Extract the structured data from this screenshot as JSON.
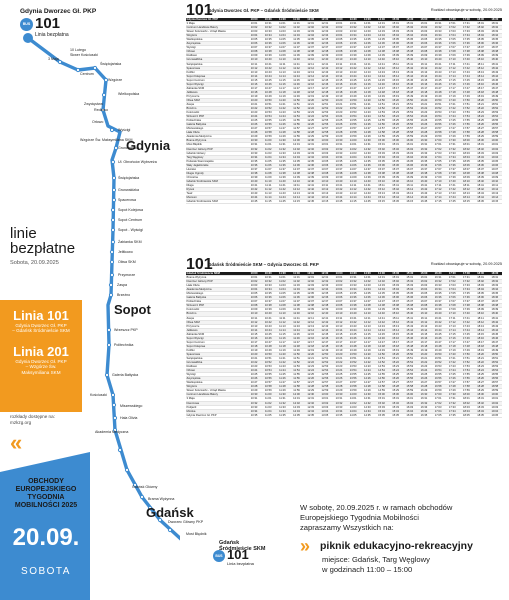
{
  "header": {
    "start_stop": "Gdynia Dworzec Gł. PKP",
    "line_badge": "BUS",
    "line_number": "101",
    "line_free": "Linia bezpłatna"
  },
  "route_left": {
    "stops": [
      "10 Lutego",
      "Skwer Kościuszki",
      "3 Maja",
      "Centrum",
      "Świętojańska",
      "Wzgórze",
      "Redłowo",
      "Wielkopolska",
      "Zwycięstwa",
      "Orłowo",
      "Wyścigi",
      "Wzgórze Św. Maksymiliana SKM",
      "Grunwaldzka",
      "Ul. Obrońców Wybrzeża",
      "Świętojańska",
      "Grunwaldzka",
      "Spacerowa",
      "Sopot Kolejowa",
      "Sopot Centrum",
      "Sopot - Wyścigi",
      "Żabianka SKM",
      "Jelitkowo",
      "Oliwa SKM",
      "Przymorze",
      "Zaspa",
      "Brzeźno",
      "Wrzeszcz PKP",
      "Politechnika",
      "Galeria Bałtycka",
      "Kościuszki",
      "Miszewskiego",
      "Hala Olivia",
      "Akademia Medyczna",
      "Gdańsk Główny",
      "Brama Wyżynna",
      "Dworzec Główny PKP",
      "Most Błędnik"
    ],
    "cities": [
      "Gdynia",
      "Sopot",
      "Gdańsk"
    ],
    "end_stop": "Gdańsk Śródmieście SKM",
    "end_badge": "BUS",
    "end_number": "101",
    "end_free": "Linia bezpłatna"
  },
  "free_lines": {
    "title_line1": "linie",
    "title_line2": "bezpłatne",
    "date": "Sobota, 20.09.2025"
  },
  "orange": {
    "l101_title": "Linia 101",
    "l101_sub1": "Gdynia Dworzec Gł. PKP",
    "l101_sub2": "– Gdańsk Śródmieście SKM",
    "l201_title": "Linia 201",
    "l201_sub1": "Gdynia Dworzec Gł. PKP",
    "l201_sub2": "– Wzgórze Św.",
    "l201_sub3": "Maksymiliana SKM"
  },
  "note": {
    "line1": "rozkłady dostępne na:",
    "line2": "mzkzg.org"
  },
  "mobility": {
    "line1": "OBCHODY",
    "line2": "EUROPEJSKIEGO",
    "line3": "TYGODNIA",
    "line4": "MOBILNOŚCI 2025",
    "date": "20.09.",
    "day": "SOBOTA"
  },
  "tt1": {
    "number": "101",
    "route": "Gdynia Dworzec Gł. PKP – Gdańsk Śródmieście SKM",
    "valid": "Rozkład obowiązuje w sobotę, 20.09.2025",
    "header_name": "Gdynia Dworzec Gł. PKP",
    "times": [
      "10:00",
      "10:30",
      "11:00",
      "11:30",
      "12:00",
      "12:30",
      "13:00",
      "13:30",
      "14:00",
      "14:30",
      "15:00",
      "15:30",
      "16:00",
      "16:30",
      "17:00",
      "17:30",
      "18:00",
      "18:30"
    ],
    "rows": [
      "3 Maja",
      "Centrum Handlowe Batory",
      "Skwer Kościuszki - Urząd Miasta",
      "Wzgórze",
      "Wielkopolska",
      "Zwycięstwa",
      "Wyścigi",
      "Orłowo",
      "Redłowo",
      "Grunwaldzka",
      "Świętojańska",
      "Spacerowa",
      "Kolibki",
      "Sopot Kolejowa",
      "Sopot Centrum",
      "Sopot Wyścigi",
      "Żabianka SKM",
      "Jelitkowo",
      "Przymorze",
      "Oliwa SKM",
      "Zaspa",
      "Brzeźno",
      "Kościuszki",
      "Wrzeszcz PKP",
      "Politechnika",
      "Galeria Bałtycka",
      "Miszewskiego",
      "Hala Olivia",
      "Akademia Medyczna",
      "Brama Wyżynna",
      "Most Błędnik",
      "Dworzec Główny PKP",
      "Gdańsk Główny",
      "Targ Węglowy",
      "Podwale Staromiejskie",
      "Wały Jagiellońskie",
      "Hucisko",
      "Długie Ogrody",
      "Chmielna",
      "Gdańsk Śródmieście SKM",
      "Długa",
      "Rynek",
      "Teatr",
      "Muzeum",
      "Gdańsk Śródmieście SKM"
    ],
    "last_row": "Gdańsk Śródmieście SKM"
  },
  "tt2": {
    "number": "101",
    "route": "Gdańsk Śródmieście SKM – Gdynia Dworzec Gł. PKP",
    "valid": "Rozkład obowiązuje w sobotę, 20.09.2025",
    "header_name": "Gdańsk Śródmieście SKM",
    "times": [
      "10:00",
      "10:30",
      "11:00",
      "11:30",
      "12:00",
      "12:30",
      "13:00",
      "13:30",
      "14:00",
      "14:30",
      "15:00",
      "15:30",
      "16:00",
      "16:30",
      "17:00",
      "17:30",
      "18:00",
      "18:30"
    ],
    "rows": [
      "Brama Wyżynna",
      "Dworzec Główny PKP",
      "Hala Olivia",
      "Akademia Medyczna",
      "Miszewskiego",
      "Galeria Bałtycka",
      "Politechnika",
      "Wrzeszcz PKP",
      "Kościuszki",
      "Brzeźno",
      "Zaspa",
      "Oliwa SKM",
      "Przymorze",
      "Jelitkowo",
      "Żabianka SKM",
      "Sopot Wyścigi",
      "Sopot Centrum",
      "Sopot Kolejowa",
      "Kolibki",
      "Spacerowa",
      "Świętojańska",
      "Grunwaldzka",
      "Redłowo",
      "Orłowo",
      "Wyścigi",
      "Zwycięstwa",
      "Wielkopolska",
      "Wzgórze",
      "Skwer Kościuszki - Urząd Miasta",
      "Centrum Handlowe Batory",
      "3 Maja",
      "Dworcowa",
      "Podjazd",
      "Morska",
      "Gdynia Dworzec Gł. PKP"
    ],
    "last_row": "Gdynia Dworzec Gł. PKP"
  },
  "info": {
    "line1": "W sobotę, 20.09.2025 r. w ramach obchodów",
    "line2": "Europejskiego Tygodnia Mobilności",
    "line3": "zapraszamy Wszystkich na:",
    "event": "piknik edukacyjno-rekreacyjny",
    "place": "miejsce: Gdańsk, Targ Węglowy",
    "time": "w godzinach 11:00 – 15:00"
  },
  "colors": {
    "blue": "#3d8bd0",
    "orange": "#f29a1f",
    "dark": "#1a1a1a"
  }
}
